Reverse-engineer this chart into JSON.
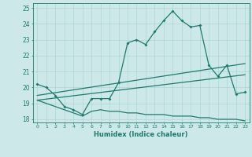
{
  "xlabel": "Humidex (Indice chaleur)",
  "xlim": [
    -0.5,
    23.5
  ],
  "ylim": [
    17.8,
    25.3
  ],
  "yticks": [
    18,
    19,
    20,
    21,
    22,
    23,
    24,
    25
  ],
  "xticks": [
    0,
    1,
    2,
    3,
    4,
    5,
    6,
    7,
    8,
    9,
    10,
    11,
    12,
    13,
    14,
    15,
    16,
    17,
    18,
    19,
    20,
    21,
    22,
    23
  ],
  "background_color": "#cce8e8",
  "line_color": "#1e7b6e",
  "line1_x": [
    0,
    1,
    2,
    3,
    4,
    5,
    6,
    7,
    8,
    9,
    10,
    11,
    12,
    13,
    14,
    15,
    16,
    17,
    18,
    19,
    20,
    21,
    22,
    23
  ],
  "line1_y": [
    20.2,
    20.0,
    19.5,
    18.8,
    18.6,
    18.3,
    19.3,
    19.3,
    19.3,
    20.3,
    22.8,
    23.0,
    22.7,
    23.5,
    24.2,
    24.8,
    24.2,
    23.8,
    23.9,
    21.4,
    20.7,
    21.4,
    19.6,
    19.7
  ],
  "line2_x": [
    0,
    23
  ],
  "line2_y": [
    19.5,
    21.5
  ],
  "line3_x": [
    0,
    23
  ],
  "line3_y": [
    19.2,
    20.8
  ],
  "line4_x": [
    0,
    1,
    2,
    3,
    4,
    5,
    6,
    7,
    8,
    9,
    10,
    11,
    12,
    13,
    14,
    15,
    16,
    17,
    18,
    19,
    20,
    21,
    22,
    23
  ],
  "line4_y": [
    19.2,
    19.0,
    18.8,
    18.6,
    18.4,
    18.2,
    18.5,
    18.6,
    18.5,
    18.5,
    18.4,
    18.4,
    18.3,
    18.3,
    18.3,
    18.2,
    18.2,
    18.2,
    18.1,
    18.1,
    18.0,
    18.0,
    18.0,
    17.9
  ]
}
